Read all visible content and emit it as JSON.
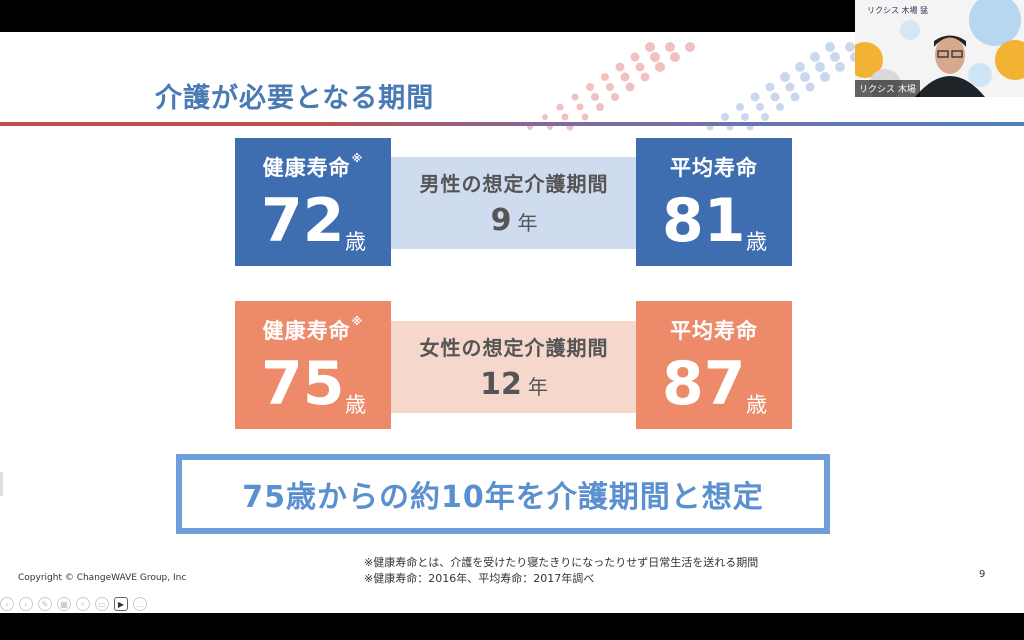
{
  "slide": {
    "title": "介護が必要となる期間",
    "rows": [
      {
        "health_label": "健康寿命",
        "health_mark": "※",
        "health_value": "72",
        "health_unit": "歳",
        "period_title": "男性の想定介護期間",
        "period_value": "9",
        "period_unit": "年",
        "avg_label": "平均寿命",
        "avg_value": "81",
        "avg_unit": "歳"
      },
      {
        "health_label": "健康寿命",
        "health_mark": "※",
        "health_value": "75",
        "health_unit": "歳",
        "period_title": "女性の想定介護期間",
        "period_value": "12",
        "period_unit": "年",
        "avg_label": "平均寿命",
        "avg_value": "87",
        "avg_unit": "歳"
      }
    ],
    "conclusion": "75歳からの約10年を介護期間と想定",
    "footnotes": [
      "※健康寿命とは、介護を受けたり寝たきりになったりせず日常生活を送れる期間",
      "※健康寿命：2016年、平均寿命：2017年調べ"
    ],
    "copyright": "Copyright © ChangeWAVE Group, Inc",
    "page_number": "9"
  },
  "webcam": {
    "name_tag": "リクシス 木場",
    "event_text": "リクシス 木場 猛"
  },
  "colors": {
    "male_box": "#3e6db0",
    "male_band": "#cfdcef",
    "female_box": "#ec8a6a",
    "female_band": "#f6d7cc",
    "title": "#4a7ab5",
    "conclusion_border": "#6f9fd8"
  },
  "icons": [
    "prev-icon",
    "next-icon",
    "pen-icon",
    "slides-icon",
    "zoom-icon",
    "subtitles-icon",
    "camera-icon",
    "more-icon"
  ]
}
